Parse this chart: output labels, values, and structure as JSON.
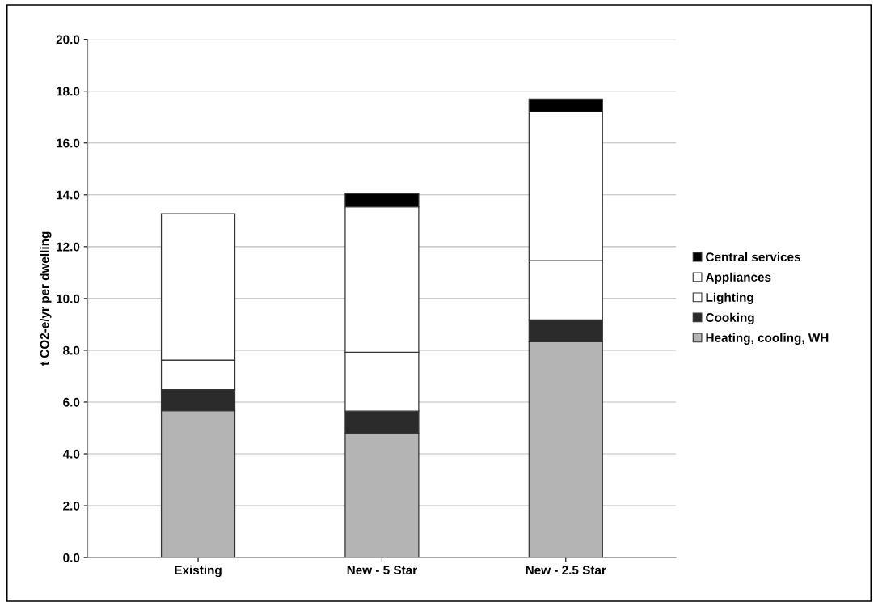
{
  "chart_data": {
    "type": "bar",
    "stacked": true,
    "ylabel": "t CO2-e/yr per dwelling",
    "categories": [
      "Existing",
      "New - 5 Star",
      "New - 2.5 Star"
    ],
    "series": [
      {
        "name": "Heating, cooling, WH",
        "color": "#b4b4b4",
        "values": [
          5.67,
          4.79,
          8.33
        ]
      },
      {
        "name": "Cooking",
        "color": "#2b2b2b",
        "values": [
          0.81,
          0.86,
          0.84
        ]
      },
      {
        "name": "Lighting",
        "color": "#ffffff",
        "values": [
          1.14,
          2.27,
          2.29
        ]
      },
      {
        "name": "Appliances",
        "color": "#ffffff",
        "values": [
          5.65,
          5.62,
          5.74
        ]
      },
      {
        "name": "Central services",
        "color": "#000000",
        "values": [
          null,
          0.51,
          0.5
        ]
      }
    ],
    "ylim": [
      0,
      20
    ],
    "yticks": [
      {
        "value": 0,
        "label": "0.0"
      },
      {
        "value": 2,
        "label": "2.0"
      },
      {
        "value": 4,
        "label": "4.0"
      },
      {
        "value": 6,
        "label": "6.0"
      },
      {
        "value": 8,
        "label": "8.0"
      },
      {
        "value": 10,
        "label": "10.0"
      },
      {
        "value": 12,
        "label": "12.0"
      },
      {
        "value": 14,
        "label": "14.0"
      },
      {
        "value": 16,
        "label": "16.0"
      },
      {
        "value": 18,
        "label": "18.0"
      },
      {
        "value": 20,
        "label": "20.0"
      }
    ],
    "grid": "y",
    "legend": "right"
  }
}
